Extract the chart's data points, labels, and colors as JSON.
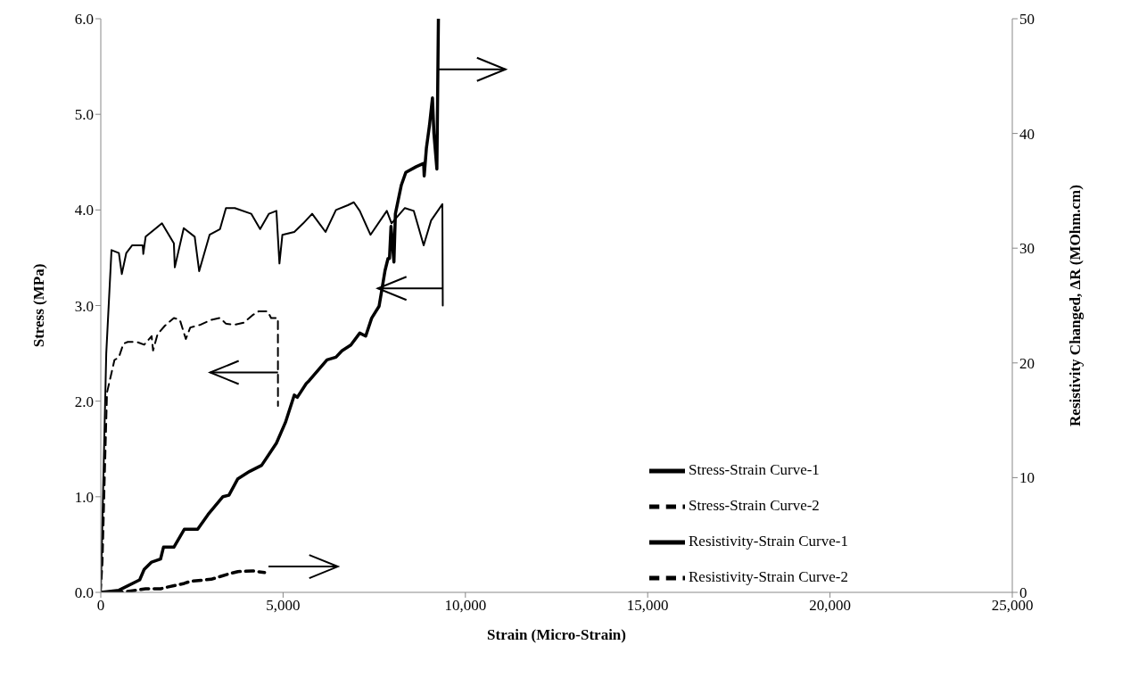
{
  "chart_data": {
    "type": "line",
    "xlabel": "Strain (Micro-Strain)",
    "ylabel": "Stress (MPa)",
    "y2label": "Resistivity Changed, ΔR (MOhm.cm)",
    "xlim": [
      0,
      25000
    ],
    "xticks": [
      0,
      {
        "value": 5000,
        "label": "5,000"
      },
      {
        "value": 10000,
        "label": "10,000"
      },
      {
        "value": 15000,
        "label": "15,000"
      },
      {
        "value": 20000,
        "label": "20,000"
      },
      {
        "value": 25000,
        "label": "25,000"
      }
    ],
    "ylim": [
      0,
      6
    ],
    "yticks": [
      {
        "value": 0,
        "label": "0.0"
      },
      {
        "value": 1,
        "label": "1.0"
      },
      {
        "value": 2,
        "label": "2.0"
      },
      {
        "value": 3,
        "label": "3.0"
      },
      {
        "value": 4,
        "label": "4.0"
      },
      {
        "value": 5,
        "label": "5.0"
      },
      {
        "value": 6,
        "label": "6.0"
      }
    ],
    "y2lim": [
      0,
      50
    ],
    "y2ticks": [
      0,
      10,
      20,
      30,
      40,
      50
    ],
    "grid": false,
    "legend": "bottom right",
    "marker": "none",
    "series": [
      {
        "name": "Stress-Strain Curve-1",
        "color": "#000000",
        "line_style": "solid",
        "x": [
          0,
          150,
          294,
          496,
          577,
          700,
          863,
          1150,
          1166,
          1230,
          1678,
          2005,
          2030,
          2275,
          2576,
          2698,
          2984,
          3270,
          3433,
          3677,
          4125,
          4370,
          4613,
          4817,
          4900,
          4981,
          5308,
          5553,
          5797,
          6164,
          6450,
          6776,
          6940,
          7103,
          7397,
          7845,
          7975,
          8340,
          8585,
          8856,
          9060,
          9369,
          9380
        ],
        "values": [
          0,
          2.5,
          3.58,
          3.55,
          3.33,
          3.55,
          3.63,
          3.63,
          3.54,
          3.72,
          3.86,
          3.65,
          3.4,
          3.81,
          3.72,
          3.36,
          3.74,
          3.8,
          4.02,
          4.02,
          3.96,
          3.8,
          3.96,
          3.99,
          3.44,
          3.74,
          3.77,
          3.86,
          3.96,
          3.77,
          4.0,
          4.05,
          4.08,
          3.99,
          3.74,
          3.99,
          3.86,
          4.02,
          3.99,
          3.63,
          3.89,
          4.06,
          3.0
        ]
      },
      {
        "name": "Stress-Strain Curve-2",
        "color": "#000000",
        "line_style": "dashed",
        "x": [
          0,
          49,
          171,
          375,
          497,
          620,
          741,
          986,
          1190,
          1394,
          1434,
          1557,
          1761,
          2005,
          2169,
          2333,
          2454,
          2740,
          3026,
          3270,
          3433,
          3677,
          3921,
          4165,
          4330,
          4574,
          4672,
          4858,
          4860
        ],
        "values": [
          0,
          0.32,
          2.09,
          2.43,
          2.46,
          2.6,
          2.62,
          2.62,
          2.59,
          2.68,
          2.53,
          2.7,
          2.79,
          2.87,
          2.85,
          2.65,
          2.77,
          2.8,
          2.85,
          2.87,
          2.81,
          2.8,
          2.82,
          2.9,
          2.94,
          2.94,
          2.87,
          2.87,
          1.95
        ]
      },
      {
        "name": "Resistivity-Strain Curve-1",
        "color": "#000000",
        "line_style": "solid",
        "axis": "y2",
        "x": [
          0,
          497,
          1067,
          1190,
          1394,
          1639,
          1720,
          2005,
          2290,
          2657,
          2943,
          3351,
          3514,
          3759,
          4085,
          4411,
          4817,
          5063,
          5308,
          5390,
          5634,
          5715,
          6205,
          6450,
          6613,
          6858,
          7103,
          7266,
          7429,
          7633,
          7715,
          7796,
          7878,
          7918,
          7960,
          8040,
          8080,
          8243,
          8365,
          8650,
          8855,
          8870,
          8930,
          9015,
          9097,
          9137,
          9218,
          9260
        ],
        "values": [
          0,
          0.18,
          1.09,
          2.0,
          2.64,
          2.9,
          3.94,
          3.94,
          5.5,
          5.5,
          6.79,
          8.34,
          8.47,
          9.9,
          10.55,
          11.07,
          13.0,
          14.8,
          17.2,
          17.0,
          18.2,
          18.45,
          20.27,
          20.5,
          21.05,
          21.56,
          22.6,
          22.34,
          23.9,
          24.94,
          26.5,
          28.05,
          29.1,
          29.1,
          31.9,
          28.8,
          33.0,
          35.5,
          36.6,
          37.1,
          37.4,
          36.3,
          38.7,
          40.7,
          43.1,
          40.0,
          36.9,
          50
        ]
      },
      {
        "name": "Resistivity-Strain Curve-2",
        "color": "#000000",
        "line_style": "dashed",
        "axis": "y2",
        "x": [
          0,
          660,
          1230,
          1639,
          1802,
          2290,
          2454,
          3026,
          3514,
          3759,
          4165,
          4492
        ],
        "values": [
          0,
          0.05,
          0.31,
          0.31,
          0.44,
          0.78,
          0.96,
          1.14,
          1.61,
          1.81,
          1.87,
          1.73
        ]
      }
    ]
  }
}
